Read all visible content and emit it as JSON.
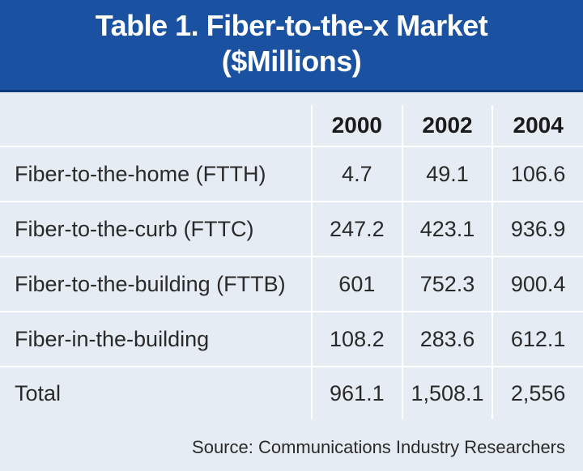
{
  "title": {
    "line1": "Table 1. Fiber-to-the-x Market",
    "line2": "($Millions)"
  },
  "chart_data": {
    "type": "table",
    "title": "Table 1. Fiber-to-the-x Market ($Millions)",
    "columns": [
      "2000",
      "2002",
      "2004"
    ],
    "rows": [
      {
        "label": "Fiber-to-the-home (FTTH)",
        "values": [
          "4.7",
          "49.1",
          "106.6"
        ]
      },
      {
        "label": "Fiber-to-the-curb (FTTC)",
        "values": [
          "247.2",
          "423.1",
          "936.9"
        ]
      },
      {
        "label": "Fiber-to-the-building (FTTB)",
        "values": [
          "601",
          "752.3",
          "900.4"
        ]
      },
      {
        "label": "Fiber-in-the-building",
        "values": [
          "108.2",
          "283.6",
          "612.1"
        ]
      },
      {
        "label": "Total",
        "values": [
          "961.1",
          "1,508.1",
          "2,556"
        ]
      }
    ]
  },
  "source": "Source: Communications Industry Researchers",
  "colors": {
    "header_band": "#1a52a1",
    "table_bg": "#e6ecf3",
    "rule": "#ffffff"
  }
}
